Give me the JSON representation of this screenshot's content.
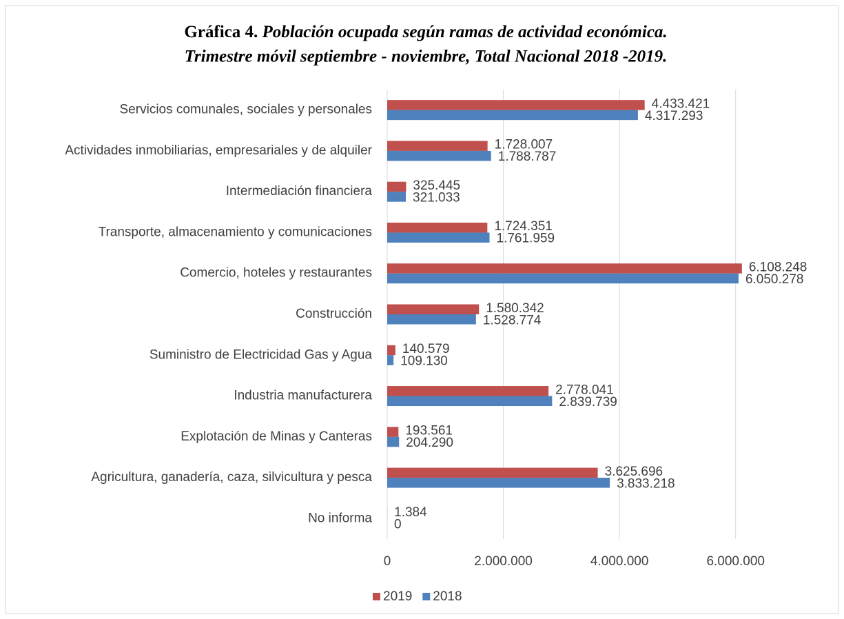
{
  "chart_data": {
    "type": "bar",
    "orientation": "horizontal",
    "title_label": "Gráfica 4.",
    "title": "Población ocupada según ramas de actividad económica.",
    "subtitle": "Trimestre móvil septiembre - noviembre, Total Nacional 2018 -2019.",
    "categories": [
      "Servicios comunales, sociales y personales",
      "Actividades inmobiliarias, empresariales y de alquiler",
      "Intermediación financiera",
      "Transporte, almacenamiento y comunicaciones",
      "Comercio, hoteles y restaurantes",
      "Construcción",
      "Suministro de Electricidad Gas y Agua",
      "Industria manufacturera",
      "Explotación de Minas y Canteras",
      "Agricultura, ganadería, caza, silvicultura y pesca",
      "No informa"
    ],
    "series": [
      {
        "name": "2019",
        "color": "#c0504d",
        "values": [
          4433421,
          1728007,
          325445,
          1724351,
          6108248,
          1580342,
          140579,
          2778041,
          193561,
          3625696,
          1384
        ],
        "value_labels": [
          "4.433.421",
          "1.728.007",
          "325.445",
          "1.724.351",
          "6.108.248",
          "1.580.342",
          "140.579",
          "2.778.041",
          "193.561",
          "3.625.696",
          "1.384"
        ]
      },
      {
        "name": "2018",
        "color": "#4f81bd",
        "values": [
          4317293,
          1788787,
          321033,
          1761959,
          6050278,
          1528774,
          109130,
          2839739,
          204290,
          3833218,
          0
        ],
        "value_labels": [
          "4.317.293",
          "1.788.787",
          "321.033",
          "1.761.959",
          "6.050.278",
          "1.528.774",
          "109.130",
          "2.839.739",
          "204.290",
          "3.833.218",
          "0"
        ]
      }
    ],
    "xlim": [
      0,
      7000000
    ],
    "xticks": [
      0,
      {
        "value": 2000000,
        "label": "2.000.000"
      },
      {
        "value": 4000000,
        "label": "4.000.000"
      },
      {
        "value": 6000000,
        "label": "6.000.000"
      }
    ],
    "grid": true,
    "legend": "bottom"
  }
}
